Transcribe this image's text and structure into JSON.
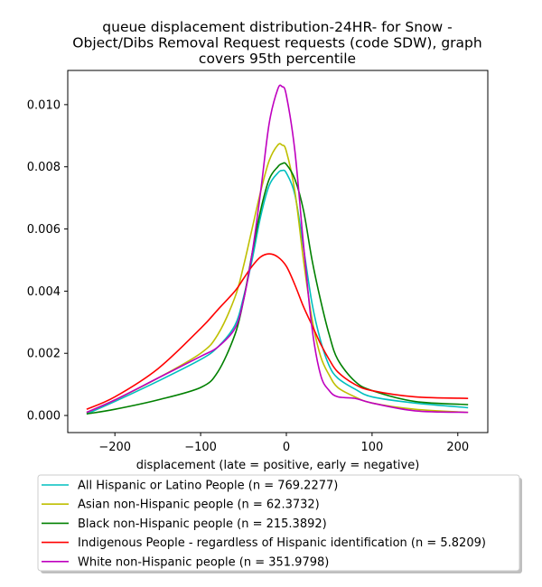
{
  "chart_data": {
    "type": "line",
    "title_lines": [
      "queue displacement distribution-24HR-  for Snow -",
      "Object/Dibs Removal Request  requests (code SDW), graph",
      "covers 95th percentile"
    ],
    "xlabel": "displacement (late = positive, early = negative)",
    "ylabel": "",
    "xlim": [
      -255,
      235
    ],
    "ylim": [
      -0.00055,
      0.0111
    ],
    "xticks": [
      -200,
      -100,
      0,
      100,
      200
    ],
    "xtick_labels": [
      "−200",
      "−100",
      "0",
      "100",
      "200"
    ],
    "yticks": [
      0.0,
      0.002,
      0.004,
      0.006,
      0.008,
      0.01
    ],
    "ytick_labels": [
      "0.000",
      "0.002",
      "0.004",
      "0.006",
      "0.008",
      "0.010"
    ],
    "grid": false,
    "legend_position": "below",
    "series": [
      {
        "name": "All Hispanic or Latino People (n = 769.2277)",
        "color": "#00bfbf",
        "x": [
          -233,
          -200,
          -150,
          -100,
          -80,
          -60,
          -50,
          -40,
          -30,
          -20,
          -10,
          -5,
          0,
          10,
          20,
          30,
          40,
          50,
          60,
          80,
          100,
          150,
          212
        ],
        "y": [
          5e-05,
          0.00045,
          0.0011,
          0.0018,
          0.0022,
          0.0029,
          0.0038,
          0.005,
          0.0064,
          0.0074,
          0.0078,
          0.00788,
          0.0078,
          0.0071,
          0.0054,
          0.0036,
          0.0024,
          0.0016,
          0.0012,
          0.00085,
          0.0006,
          0.0004,
          0.00025
        ]
      },
      {
        "name": "Asian non-Hispanic people (n = 62.3732)",
        "color": "#bfbf00",
        "x": [
          -233,
          -200,
          -150,
          -100,
          -80,
          -60,
          -50,
          -40,
          -30,
          -20,
          -10,
          -5,
          0,
          10,
          20,
          30,
          40,
          50,
          60,
          80,
          100,
          150,
          212
        ],
        "y": [
          0.0001,
          0.0005,
          0.0012,
          0.002,
          0.0026,
          0.0038,
          0.0048,
          0.006,
          0.0072,
          0.0082,
          0.0087,
          0.0087,
          0.0085,
          0.0072,
          0.005,
          0.0031,
          0.0019,
          0.0013,
          0.0009,
          0.0006,
          0.0004,
          0.0002,
          0.0001
        ]
      },
      {
        "name": "Black non-Hispanic people (n = 215.3892)",
        "color": "#008000",
        "x": [
          -233,
          -200,
          -150,
          -100,
          -80,
          -60,
          -50,
          -40,
          -30,
          -20,
          -10,
          -5,
          0,
          10,
          20,
          30,
          40,
          50,
          60,
          80,
          100,
          150,
          212
        ],
        "y": [
          5e-05,
          0.0002,
          0.0005,
          0.0009,
          0.0014,
          0.0026,
          0.0037,
          0.0052,
          0.0066,
          0.0076,
          0.008,
          0.0081,
          0.00808,
          0.0076,
          0.0066,
          0.005,
          0.0037,
          0.0026,
          0.0018,
          0.0011,
          0.0008,
          0.00045,
          0.00035
        ]
      },
      {
        "name": "Indigenous People - regardless of Hispanic identification (n = 5.8209)",
        "color": "#ff0000",
        "x": [
          -233,
          -200,
          -150,
          -100,
          -80,
          -60,
          -50,
          -40,
          -30,
          -20,
          -10,
          0,
          10,
          20,
          30,
          40,
          50,
          60,
          80,
          100,
          150,
          212
        ],
        "y": [
          0.0002,
          0.0006,
          0.0015,
          0.0028,
          0.0034,
          0.004,
          0.0044,
          0.0048,
          0.0051,
          0.0052,
          0.0051,
          0.0048,
          0.0042,
          0.0035,
          0.0029,
          0.0023,
          0.0018,
          0.0014,
          0.001,
          0.0008,
          0.0006,
          0.00055
        ]
      },
      {
        "name": "White non-Hispanic people (n = 351.9798)",
        "color": "#bf00bf",
        "x": [
          -233,
          -200,
          -150,
          -100,
          -80,
          -60,
          -50,
          -40,
          -30,
          -20,
          -10,
          -5,
          0,
          10,
          20,
          30,
          40,
          50,
          60,
          80,
          100,
          150,
          212
        ],
        "y": [
          0.0001,
          0.0005,
          0.0012,
          0.0019,
          0.0022,
          0.0028,
          0.0037,
          0.0052,
          0.0072,
          0.0094,
          0.0105,
          0.01058,
          0.0103,
          0.0085,
          0.0055,
          0.0028,
          0.0013,
          0.0008,
          0.0006,
          0.00055,
          0.0004,
          0.00015,
          0.0001
        ]
      }
    ]
  }
}
